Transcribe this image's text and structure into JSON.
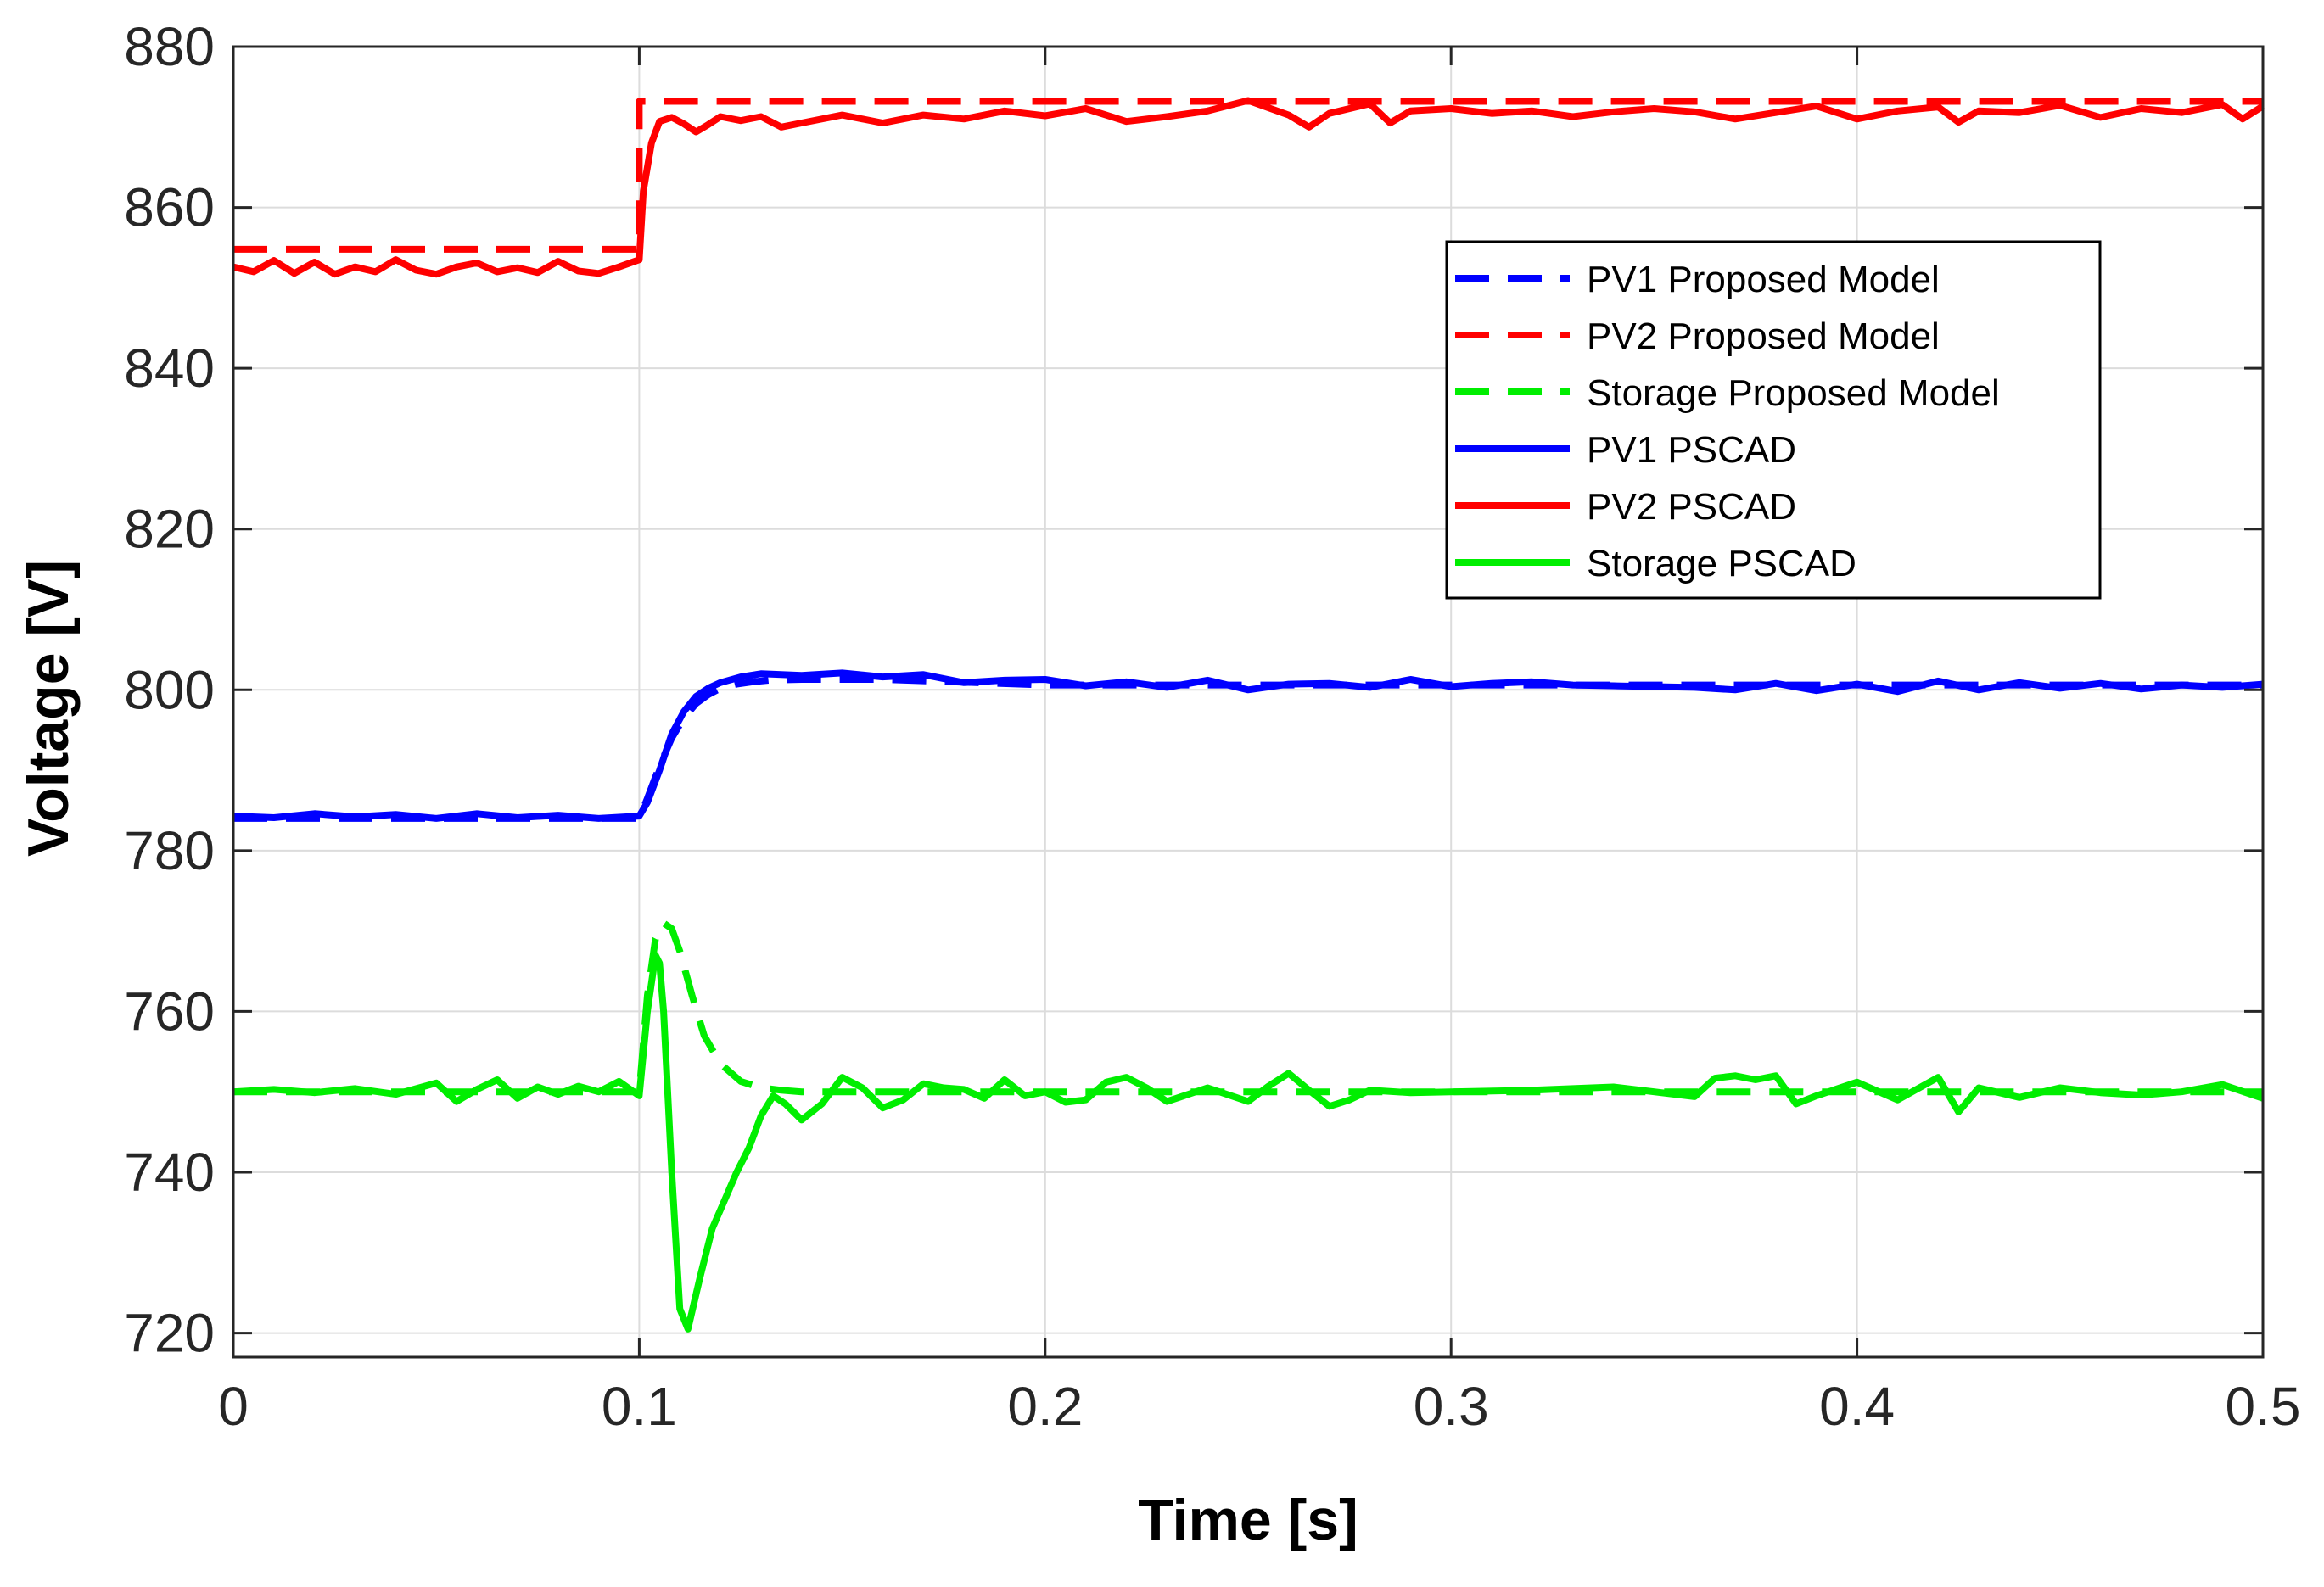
{
  "chart_data": {
    "type": "line",
    "title": "",
    "xlabel": "Time [s]",
    "ylabel": "Voltage [V]",
    "xlim": [
      0,
      0.5
    ],
    "ylim": [
      717,
      880
    ],
    "xticks": [
      0,
      0.1,
      0.2,
      0.3,
      0.4,
      0.5
    ],
    "xtick_labels": [
      "0",
      "0.1",
      "0.2",
      "0.3",
      "0.4",
      "0.5"
    ],
    "yticks": [
      720,
      740,
      760,
      780,
      800,
      820,
      840,
      860,
      880
    ],
    "ytick_labels": [
      "720",
      "740",
      "760",
      "780",
      "800",
      "820",
      "840",
      "860",
      "880"
    ],
    "grid": true,
    "legend_position": "upper-right",
    "series": [
      {
        "name": "PV1 Proposed Model",
        "color": "#0000ff",
        "style": "dashed",
        "x": [
          0,
          0.1,
          0.102,
          0.105,
          0.108,
          0.111,
          0.114,
          0.117,
          0.12,
          0.124,
          0.128,
          0.132,
          0.14,
          0.16,
          0.2,
          0.5
        ],
        "y": [
          784,
          784,
          786.5,
          790.5,
          794,
          796.5,
          798.3,
          799.4,
          800.2,
          800.7,
          801,
          801.2,
          801.3,
          801.3,
          800.6,
          800.6
        ]
      },
      {
        "name": "PV2 Proposed Model",
        "color": "#ff0000",
        "style": "dashed",
        "x": [
          0,
          0.1,
          0.1,
          0.5
        ],
        "y": [
          854.8,
          854.8,
          873.2,
          873.2
        ]
      },
      {
        "name": "Storage Proposed Model",
        "color": "#00ee00",
        "style": "dashed",
        "x": [
          0,
          0.1,
          0.102,
          0.104,
          0.106,
          0.108,
          0.11,
          0.113,
          0.116,
          0.12,
          0.125,
          0.13,
          0.135,
          0.14,
          0.5
        ],
        "y": [
          750,
          750,
          762,
          769,
          771,
          770.3,
          767.5,
          762,
          757,
          753.5,
          751.3,
          750.5,
          750.2,
          750,
          750
        ]
      },
      {
        "name": "PV1 PSCAD",
        "color": "#0000ff",
        "style": "solid",
        "x": [
          0,
          0.01,
          0.02,
          0.03,
          0.04,
          0.05,
          0.06,
          0.07,
          0.08,
          0.09,
          0.1,
          0.102,
          0.105,
          0.108,
          0.111,
          0.114,
          0.117,
          0.12,
          0.125,
          0.13,
          0.14,
          0.15,
          0.16,
          0.17,
          0.18,
          0.19,
          0.2,
          0.21,
          0.22,
          0.23,
          0.24,
          0.25,
          0.26,
          0.27,
          0.28,
          0.29,
          0.3,
          0.31,
          0.32,
          0.33,
          0.34,
          0.35,
          0.36,
          0.37,
          0.38,
          0.39,
          0.4,
          0.41,
          0.42,
          0.43,
          0.44,
          0.45,
          0.46,
          0.47,
          0.48,
          0.49,
          0.5
        ],
        "y": [
          784.3,
          784.1,
          784.6,
          784.2,
          784.5,
          784.0,
          784.6,
          784.1,
          784.4,
          784.0,
          784.3,
          786,
          790,
          794.5,
          797.3,
          799.2,
          800.2,
          800.9,
          801.6,
          802.0,
          801.8,
          802.1,
          801.6,
          801.9,
          800.9,
          801.2,
          801.3,
          800.5,
          801.0,
          800.3,
          801.2,
          800.0,
          800.7,
          800.8,
          800.3,
          801.3,
          800.4,
          800.8,
          801.0,
          800.6,
          800.5,
          800.4,
          800.3,
          800.0,
          800.8,
          799.9,
          800.7,
          799.8,
          801.1,
          800.0,
          800.9,
          800.2,
          800.8,
          800.1,
          800.6,
          800.3,
          800.7
        ]
      },
      {
        "name": "PV2 PSCAD",
        "color": "#ff0000",
        "style": "solid",
        "x": [
          0,
          0.005,
          0.01,
          0.015,
          0.02,
          0.025,
          0.03,
          0.035,
          0.04,
          0.045,
          0.05,
          0.055,
          0.06,
          0.065,
          0.07,
          0.075,
          0.08,
          0.085,
          0.09,
          0.095,
          0.1,
          0.101,
          0.103,
          0.105,
          0.108,
          0.111,
          0.114,
          0.117,
          0.12,
          0.125,
          0.13,
          0.135,
          0.14,
          0.15,
          0.16,
          0.17,
          0.18,
          0.19,
          0.2,
          0.21,
          0.22,
          0.23,
          0.24,
          0.25,
          0.26,
          0.265,
          0.27,
          0.28,
          0.285,
          0.29,
          0.3,
          0.31,
          0.32,
          0.33,
          0.34,
          0.35,
          0.36,
          0.37,
          0.38,
          0.39,
          0.4,
          0.41,
          0.42,
          0.425,
          0.43,
          0.44,
          0.45,
          0.46,
          0.47,
          0.48,
          0.49,
          0.495,
          0.5
        ],
        "y": [
          852.6,
          852.0,
          853.4,
          851.8,
          853.2,
          851.7,
          852.6,
          852.0,
          853.5,
          852.2,
          851.7,
          852.6,
          853.1,
          852.0,
          852.5,
          851.9,
          853.3,
          852.1,
          851.8,
          852.6,
          853.5,
          862,
          868,
          870.7,
          871.2,
          870.4,
          869.4,
          870.3,
          871.3,
          870.8,
          871.3,
          870.0,
          870.5,
          871.5,
          870.5,
          871.5,
          871.0,
          872.0,
          871.4,
          872.3,
          870.7,
          871.3,
          872.0,
          873.3,
          871.5,
          870.0,
          871.7,
          872.9,
          870.5,
          872.0,
          872.3,
          871.7,
          872.0,
          871.3,
          871.9,
          872.3,
          871.9,
          871.0,
          871.8,
          872.6,
          871.0,
          872.0,
          872.5,
          870.6,
          872.0,
          871.8,
          872.7,
          871.2,
          872.3,
          871.8,
          872.8,
          871.0,
          872.6
        ]
      },
      {
        "name": "Storage PSCAD",
        "color": "#00ee00",
        "style": "solid",
        "x": [
          0,
          0.01,
          0.02,
          0.03,
          0.04,
          0.05,
          0.055,
          0.06,
          0.065,
          0.07,
          0.075,
          0.08,
          0.085,
          0.09,
          0.095,
          0.1,
          0.102,
          0.104,
          0.105,
          0.106,
          0.108,
          0.11,
          0.112,
          0.115,
          0.118,
          0.121,
          0.124,
          0.127,
          0.13,
          0.133,
          0.136,
          0.14,
          0.145,
          0.15,
          0.155,
          0.16,
          0.165,
          0.17,
          0.175,
          0.18,
          0.185,
          0.19,
          0.195,
          0.2,
          0.205,
          0.21,
          0.215,
          0.22,
          0.225,
          0.23,
          0.24,
          0.25,
          0.255,
          0.26,
          0.265,
          0.27,
          0.275,
          0.28,
          0.29,
          0.3,
          0.32,
          0.34,
          0.36,
          0.365,
          0.37,
          0.375,
          0.38,
          0.385,
          0.39,
          0.4,
          0.41,
          0.42,
          0.425,
          0.43,
          0.44,
          0.45,
          0.46,
          0.47,
          0.48,
          0.49,
          0.5
        ],
        "y": [
          750,
          750.3,
          749.9,
          750.4,
          749.7,
          751.1,
          748.8,
          750.3,
          751.5,
          749.2,
          750.6,
          749.7,
          750.7,
          750.0,
          751.3,
          749.5,
          760,
          767,
          766,
          760,
          740,
          723,
          720.5,
          727,
          733,
          736.5,
          740,
          743,
          747,
          749.5,
          748.5,
          746.5,
          748.5,
          751.8,
          750.5,
          748.0,
          749.0,
          751.0,
          750.5,
          750.3,
          749.2,
          751.5,
          749.5,
          750.0,
          748.7,
          749.0,
          751.2,
          751.8,
          750.5,
          748.8,
          750.5,
          748.8,
          750.7,
          752.3,
          750.2,
          748.2,
          749.0,
          750.2,
          749.9,
          750.0,
          750.2,
          750.6,
          749.4,
          751.7,
          752.0,
          751.5,
          752.0,
          748.5,
          749.5,
          751.2,
          749.0,
          751.8,
          747.5,
          750.5,
          749.3,
          750.5,
          749.9,
          749.6,
          750.0,
          750.9,
          749.2
        ]
      }
    ]
  }
}
